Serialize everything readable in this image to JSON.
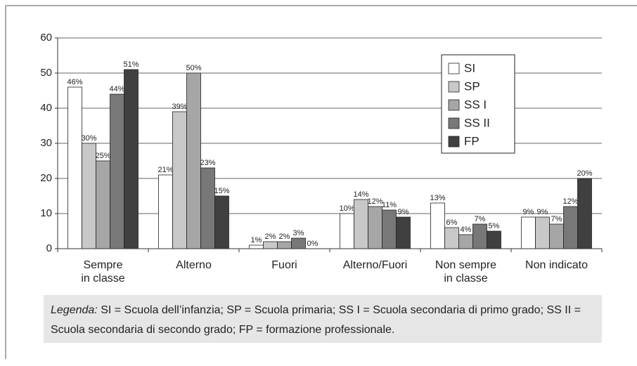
{
  "chart_data": {
    "type": "bar",
    "categories": [
      "Sempre\nin classe",
      "Alterno",
      "Fuori",
      "Alterno/Fuori",
      "Non sempre\nin classe",
      "Non indicato"
    ],
    "series": [
      {
        "name": "SI",
        "color": "#ffffff",
        "values": [
          46,
          21,
          1,
          10,
          13,
          9
        ],
        "value_labels": [
          "46%",
          "21%",
          "1%",
          "10%",
          "13%",
          "9%"
        ]
      },
      {
        "name": "SP",
        "color": "#c8c8c8",
        "values": [
          30,
          39,
          2,
          14,
          6,
          9
        ],
        "value_labels": [
          "30%",
          "39%",
          "2%",
          "14%",
          "6%",
          "9%"
        ]
      },
      {
        "name": "SS I",
        "color": "#a6a6a6",
        "values": [
          25,
          50,
          2,
          12,
          4,
          7
        ],
        "value_labels": [
          "25%",
          "50%",
          "2%",
          "12%",
          "4%",
          "7%"
        ]
      },
      {
        "name": "SS II",
        "color": "#787878",
        "values": [
          44,
          23,
          3,
          11,
          7,
          12
        ],
        "value_labels": [
          "44%",
          "23%",
          "3%",
          "11%",
          "7%",
          "12%"
        ]
      },
      {
        "name": "FP",
        "color": "#404040",
        "values": [
          51,
          15,
          0,
          9,
          5,
          20
        ],
        "value_labels": [
          "51%",
          "15%",
          "0%",
          "9%",
          "5%",
          "20%"
        ]
      }
    ],
    "ylim": [
      0,
      60
    ],
    "yticks": [
      0,
      10,
      20,
      30,
      40,
      50,
      60
    ],
    "grid": true,
    "caption_label": "Legenda:",
    "caption": "SI = Scuola dell’infanzia; SP = Scuola primaria; SS I = Scuola secondaria di primo grado; SS II = Scuola secondaria di secondo grado; FP = formazione professionale."
  }
}
